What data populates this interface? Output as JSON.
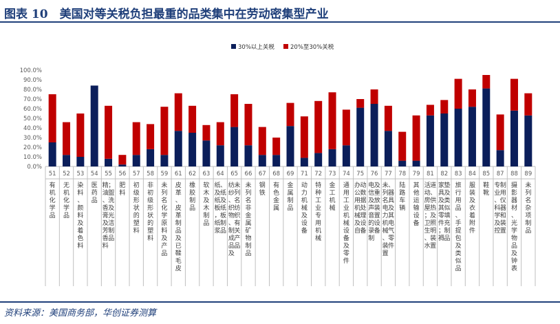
{
  "header": {
    "title": "图表 10　美国对等关税负担最重的品类集中在劳动密集型产业"
  },
  "footer": {
    "source": "资料来源：美国商务部，华创证券测算"
  },
  "colors": {
    "series_a": "#0b1e5a",
    "series_b": "#c00000",
    "accent": "#1f3f7a"
  },
  "chart_data": {
    "type": "bar",
    "stacked": true,
    "ylim": [
      0,
      100
    ],
    "yticks": [
      "0.0%",
      "10.0%",
      "20.0%",
      "30.0%",
      "40.0%",
      "50.0%",
      "60.0%",
      "70.0%",
      "80.0%",
      "90.0%",
      "100.0%"
    ],
    "legend_position": "top-center",
    "grid": false,
    "codes": [
      "51",
      "52",
      "53",
      "54",
      "55",
      "56",
      "57",
      "58",
      "59",
      "61",
      "62",
      "63",
      "64",
      "65",
      "66",
      "67",
      "68",
      "69",
      "71",
      "72",
      "73",
      "74",
      "75",
      "76",
      "77",
      "78",
      "79",
      "81",
      "82",
      "83",
      "84",
      "85",
      "87",
      "88",
      "89"
    ],
    "categories": [
      "有机化学品",
      "无机化学品",
      "染料、颜料及着色料",
      "医药品",
      "精油、香膏及芳香料；盥洗及光洁制品",
      "肥料",
      "初级形状的塑料",
      "非初级形状的塑料",
      "未列名化学原料及产品",
      "皮革、皮革制品及已鞣毛皮",
      "橡胶制品",
      "软木及木制品",
      "纸及纸板，纸浆、纸及纸板制品",
      "纺纱、织物、制成品及未列名纺织有关产品",
      "未列名非金属矿物制品",
      "钢铁",
      "有色金属",
      "金属制品",
      "动力机械及设备",
      "特种工业专用机械",
      "金工机械",
      "通用工业机械设备及零件",
      "办公用机械及自动数据处理设备",
      "电信及声音的录制及重放装置设备",
      "未列名电力机械、装置、器具及其电气零件",
      "陆路车辆",
      "其他运输设备",
      "活动房屋；卫生、水道、供热及照明装置",
      "家具及其零件；褥垫及类似填充制品",
      "旅行用品、手提包及类似品",
      "服装及衣着附件",
      "鞋靴",
      "专业、科学及控制用仪器和装置",
      "摄影器材、光学物品及钟表",
      "未列名杂项制品"
    ],
    "series": [
      {
        "name": "30%以上关税",
        "values": [
          25,
          12,
          10,
          84,
          8,
          2,
          12,
          18,
          12,
          37,
          35,
          27,
          22,
          41,
          22,
          12,
          12,
          42,
          9,
          14,
          18,
          22,
          61,
          65,
          37,
          6,
          6,
          53,
          55,
          60,
          62,
          81,
          17,
          58,
          53
        ]
      },
      {
        "name": "20%至30%关税",
        "values": [
          50,
          34,
          45,
          0,
          55,
          10,
          34,
          26,
          50,
          39,
          28,
          16,
          24,
          34,
          43,
          29,
          18,
          24,
          43,
          54,
          59,
          37,
          9,
          15,
          26,
          30,
          47,
          11,
          14,
          31,
          18,
          14,
          37,
          33,
          23
        ]
      }
    ]
  }
}
